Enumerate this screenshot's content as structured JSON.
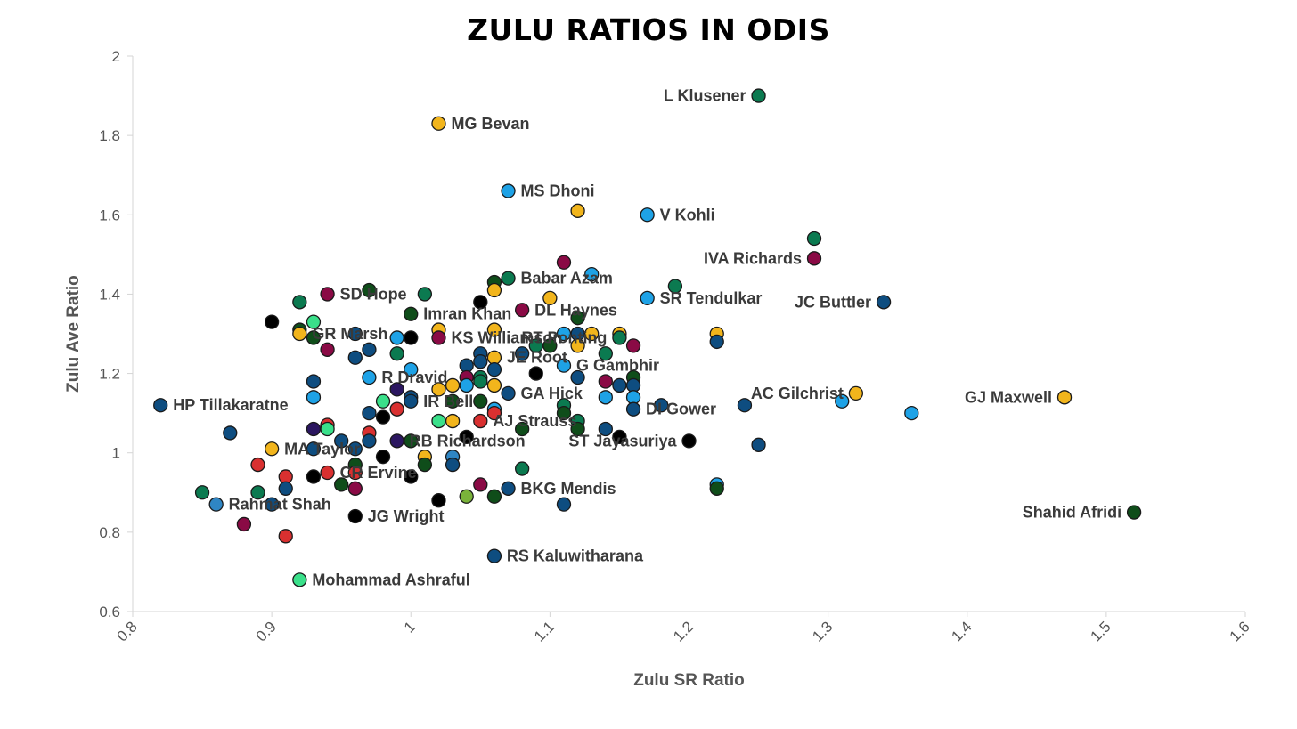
{
  "chart_data": {
    "type": "scatter",
    "title": "Zulu Ratios in ODIs",
    "xlabel": "Zulu SR Ratio",
    "ylabel": "Zulu Ave Ratio",
    "xlim": [
      0.8,
      1.6
    ],
    "ylim": [
      0.6,
      2.0
    ],
    "xticks": [
      "0.8",
      "0.9",
      "1",
      "1.1",
      "1.2",
      "1.3",
      "1.4",
      "1.5",
      "1.6"
    ],
    "yticks": [
      "0.6",
      "0.8",
      "1",
      "1.2",
      "1.4",
      "1.6",
      "1.8",
      "2"
    ],
    "grid": false,
    "legend": "none",
    "colors": {
      "gold": "#f2b51c",
      "green": "#0b7a50",
      "darkgreen": "#0f4d1a",
      "lightblue": "#1ea2e6",
      "navy": "#0e4d80",
      "black": "#000000",
      "red": "#d93030",
      "maroon": "#8a0a45",
      "mint": "#3ae08a",
      "olive": "#7ab33a",
      "purple": "#2b1660",
      "steel": "#2f86c4"
    },
    "points": [
      {
        "x": 1.25,
        "y": 1.9,
        "color": "green",
        "label": "L Klusener",
        "anchor": "left"
      },
      {
        "x": 1.02,
        "y": 1.83,
        "color": "gold",
        "label": "MG Bevan",
        "anchor": "right"
      },
      {
        "x": 1.07,
        "y": 1.66,
        "color": "lightblue",
        "label": "MS Dhoni",
        "anchor": "right"
      },
      {
        "x": 1.12,
        "y": 1.61,
        "color": "gold"
      },
      {
        "x": 1.17,
        "y": 1.6,
        "color": "lightblue",
        "label": "V Kohli",
        "anchor": "right"
      },
      {
        "x": 1.29,
        "y": 1.54,
        "color": "green"
      },
      {
        "x": 1.29,
        "y": 1.49,
        "color": "maroon",
        "label": "IVA Richards",
        "anchor": "left"
      },
      {
        "x": 1.11,
        "y": 1.48,
        "color": "maroon"
      },
      {
        "x": 1.13,
        "y": 1.45,
        "color": "lightblue"
      },
      {
        "x": 1.06,
        "y": 1.43,
        "color": "darkgreen"
      },
      {
        "x": 1.07,
        "y": 1.44,
        "color": "green",
        "label": "Babar Azam",
        "anchor": "right"
      },
      {
        "x": 1.19,
        "y": 1.42,
        "color": "green"
      },
      {
        "x": 1.06,
        "y": 1.41,
        "color": "gold"
      },
      {
        "x": 0.97,
        "y": 1.41,
        "color": "darkgreen"
      },
      {
        "x": 0.94,
        "y": 1.4,
        "color": "maroon",
        "label": "SD Hope",
        "anchor": "right"
      },
      {
        "x": 1.01,
        "y": 1.4,
        "color": "green"
      },
      {
        "x": 1.17,
        "y": 1.39,
        "color": "lightblue",
        "label": "SR Tendulkar",
        "anchor": "right"
      },
      {
        "x": 1.1,
        "y": 1.39,
        "color": "gold"
      },
      {
        "x": 1.34,
        "y": 1.38,
        "color": "navy",
        "label": "JC Buttler",
        "anchor": "left"
      },
      {
        "x": 0.92,
        "y": 1.38,
        "color": "green"
      },
      {
        "x": 1.05,
        "y": 1.38,
        "color": "black"
      },
      {
        "x": 1.08,
        "y": 1.36,
        "color": "maroon",
        "label": "DL Haynes",
        "anchor": "right"
      },
      {
        "x": 1.0,
        "y": 1.35,
        "color": "darkgreen",
        "label": "Imran Khan",
        "anchor": "right"
      },
      {
        "x": 1.12,
        "y": 1.34,
        "color": "darkgreen"
      },
      {
        "x": 0.9,
        "y": 1.33,
        "color": "black"
      },
      {
        "x": 0.93,
        "y": 1.33,
        "color": "mint"
      },
      {
        "x": 0.92,
        "y": 1.31,
        "color": "darkgreen"
      },
      {
        "x": 1.02,
        "y": 1.31,
        "color": "gold"
      },
      {
        "x": 1.06,
        "y": 1.31,
        "color": "gold"
      },
      {
        "x": 0.92,
        "y": 1.3,
        "color": "gold",
        "label": "GR Marsh",
        "anchor": "right"
      },
      {
        "x": 0.96,
        "y": 1.3,
        "color": "navy"
      },
      {
        "x": 1.11,
        "y": 1.3,
        "color": "lightblue"
      },
      {
        "x": 1.12,
        "y": 1.3,
        "color": "navy"
      },
      {
        "x": 1.13,
        "y": 1.3,
        "color": "gold"
      },
      {
        "x": 1.15,
        "y": 1.3,
        "color": "gold"
      },
      {
        "x": 1.22,
        "y": 1.3,
        "color": "gold"
      },
      {
        "x": 0.93,
        "y": 1.29,
        "color": "darkgreen"
      },
      {
        "x": 0.99,
        "y": 1.29,
        "color": "lightblue"
      },
      {
        "x": 1.0,
        "y": 1.29,
        "color": "black"
      },
      {
        "x": 1.02,
        "y": 1.29,
        "color": "maroon",
        "label": "KS Williamson",
        "anchor": "right"
      },
      {
        "x": 1.15,
        "y": 1.29,
        "color": "green",
        "label": "RT Ponting",
        "anchor": "left-over"
      },
      {
        "x": 1.22,
        "y": 1.28,
        "color": "navy"
      },
      {
        "x": 1.09,
        "y": 1.27,
        "color": "green"
      },
      {
        "x": 1.1,
        "y": 1.27,
        "color": "darkgreen"
      },
      {
        "x": 1.12,
        "y": 1.27,
        "color": "gold"
      },
      {
        "x": 1.16,
        "y": 1.27,
        "color": "maroon"
      },
      {
        "x": 0.94,
        "y": 1.26,
        "color": "maroon"
      },
      {
        "x": 0.97,
        "y": 1.26,
        "color": "navy"
      },
      {
        "x": 0.99,
        "y": 1.25,
        "color": "green"
      },
      {
        "x": 1.05,
        "y": 1.25,
        "color": "navy"
      },
      {
        "x": 1.08,
        "y": 1.25,
        "color": "navy"
      },
      {
        "x": 1.14,
        "y": 1.25,
        "color": "green"
      },
      {
        "x": 0.96,
        "y": 1.24,
        "color": "navy"
      },
      {
        "x": 1.06,
        "y": 1.24,
        "color": "gold",
        "label": "JE Root",
        "anchor": "right-over"
      },
      {
        "x": 1.05,
        "y": 1.23,
        "color": "navy"
      },
      {
        "x": 1.11,
        "y": 1.22,
        "color": "lightblue",
        "label": "G Gambhir",
        "anchor": "right-over"
      },
      {
        "x": 1.04,
        "y": 1.22,
        "color": "navy"
      },
      {
        "x": 1.06,
        "y": 1.21,
        "color": "navy"
      },
      {
        "x": 1.0,
        "y": 1.21,
        "color": "lightblue"
      },
      {
        "x": 1.09,
        "y": 1.2,
        "color": "black"
      },
      {
        "x": 0.97,
        "y": 1.19,
        "color": "lightblue",
        "label": "R Dravid",
        "anchor": "right"
      },
      {
        "x": 1.04,
        "y": 1.19,
        "color": "maroon"
      },
      {
        "x": 1.05,
        "y": 1.19,
        "color": "green"
      },
      {
        "x": 1.12,
        "y": 1.19,
        "color": "navy"
      },
      {
        "x": 1.16,
        "y": 1.19,
        "color": "darkgreen"
      },
      {
        "x": 0.93,
        "y": 1.18,
        "color": "navy"
      },
      {
        "x": 1.05,
        "y": 1.18,
        "color": "green"
      },
      {
        "x": 1.14,
        "y": 1.18,
        "color": "maroon"
      },
      {
        "x": 1.02,
        "y": 1.16,
        "color": "gold"
      },
      {
        "x": 1.03,
        "y": 1.17,
        "color": "gold"
      },
      {
        "x": 1.04,
        "y": 1.17,
        "color": "lightblue"
      },
      {
        "x": 1.06,
        "y": 1.17,
        "color": "gold"
      },
      {
        "x": 1.15,
        "y": 1.17,
        "color": "navy"
      },
      {
        "x": 1.16,
        "y": 1.17,
        "color": "navy"
      },
      {
        "x": 0.99,
        "y": 1.16,
        "color": "purple"
      },
      {
        "x": 1.07,
        "y": 1.15,
        "color": "navy",
        "label": "GA Hick",
        "anchor": "right"
      },
      {
        "x": 1.32,
        "y": 1.15,
        "color": "gold",
        "label": "AC Gilchrist",
        "anchor": "left"
      },
      {
        "x": 0.93,
        "y": 1.14,
        "color": "lightblue"
      },
      {
        "x": 1.0,
        "y": 1.14,
        "color": "navy"
      },
      {
        "x": 1.14,
        "y": 1.14,
        "color": "lightblue"
      },
      {
        "x": 1.16,
        "y": 1.14,
        "color": "lightblue"
      },
      {
        "x": 1.47,
        "y": 1.14,
        "color": "gold",
        "label": "GJ Maxwell",
        "anchor": "left"
      },
      {
        "x": 1.31,
        "y": 1.13,
        "color": "lightblue"
      },
      {
        "x": 0.98,
        "y": 1.13,
        "color": "mint"
      },
      {
        "x": 1.0,
        "y": 1.13,
        "color": "navy",
        "label": "IR Bell",
        "anchor": "right"
      },
      {
        "x": 1.03,
        "y": 1.13,
        "color": "darkgreen"
      },
      {
        "x": 1.05,
        "y": 1.13,
        "color": "darkgreen"
      },
      {
        "x": 0.82,
        "y": 1.12,
        "color": "navy",
        "label": "HP Tillakaratne",
        "anchor": "right"
      },
      {
        "x": 1.11,
        "y": 1.12,
        "color": "green"
      },
      {
        "x": 1.18,
        "y": 1.12,
        "color": "navy"
      },
      {
        "x": 1.24,
        "y": 1.12,
        "color": "navy"
      },
      {
        "x": 0.99,
        "y": 1.11,
        "color": "red"
      },
      {
        "x": 1.06,
        "y": 1.11,
        "color": "lightblue"
      },
      {
        "x": 1.16,
        "y": 1.11,
        "color": "navy",
        "label": "DI Gower",
        "anchor": "right-over"
      },
      {
        "x": 0.97,
        "y": 1.1,
        "color": "navy"
      },
      {
        "x": 1.06,
        "y": 1.1,
        "color": "red"
      },
      {
        "x": 1.11,
        "y": 1.1,
        "color": "darkgreen"
      },
      {
        "x": 1.36,
        "y": 1.1,
        "color": "lightblue"
      },
      {
        "x": 0.98,
        "y": 1.09,
        "color": "black"
      },
      {
        "x": 1.02,
        "y": 1.08,
        "color": "mint"
      },
      {
        "x": 1.03,
        "y": 1.08,
        "color": "gold"
      },
      {
        "x": 1.05,
        "y": 1.08,
        "color": "red",
        "label": "AJ Strauss",
        "anchor": "right"
      },
      {
        "x": 1.12,
        "y": 1.08,
        "color": "green"
      },
      {
        "x": 0.94,
        "y": 1.07,
        "color": "red"
      },
      {
        "x": 0.93,
        "y": 1.06,
        "color": "purple"
      },
      {
        "x": 0.94,
        "y": 1.06,
        "color": "mint"
      },
      {
        "x": 1.08,
        "y": 1.06,
        "color": "darkgreen"
      },
      {
        "x": 1.12,
        "y": 1.06,
        "color": "darkgreen"
      },
      {
        "x": 1.14,
        "y": 1.06,
        "color": "navy"
      },
      {
        "x": 0.87,
        "y": 1.05,
        "color": "navy"
      },
      {
        "x": 0.97,
        "y": 1.05,
        "color": "red"
      },
      {
        "x": 1.04,
        "y": 1.04,
        "color": "black"
      },
      {
        "x": 1.15,
        "y": 1.04,
        "color": "black"
      },
      {
        "x": 0.95,
        "y": 1.03,
        "color": "navy"
      },
      {
        "x": 0.97,
        "y": 1.03,
        "color": "navy"
      },
      {
        "x": 0.99,
        "y": 1.03,
        "color": "purple",
        "label": "RB Richardson",
        "anchor": "right-over"
      },
      {
        "x": 1.0,
        "y": 1.03,
        "color": "darkgreen"
      },
      {
        "x": 1.2,
        "y": 1.03,
        "color": "black",
        "label": "ST Jayasuriya",
        "anchor": "left-over"
      },
      {
        "x": 0.9,
        "y": 1.01,
        "color": "gold",
        "label": "MA Taylor",
        "anchor": "right"
      },
      {
        "x": 0.93,
        "y": 1.01,
        "color": "navy"
      },
      {
        "x": 0.96,
        "y": 1.01,
        "color": "navy"
      },
      {
        "x": 1.25,
        "y": 1.02,
        "color": "navy"
      },
      {
        "x": 0.98,
        "y": 0.99,
        "color": "black"
      },
      {
        "x": 1.01,
        "y": 0.99,
        "color": "gold"
      },
      {
        "x": 1.03,
        "y": 0.99,
        "color": "steel"
      },
      {
        "x": 0.89,
        "y": 0.97,
        "color": "red"
      },
      {
        "x": 0.96,
        "y": 0.97,
        "color": "darkgreen"
      },
      {
        "x": 1.01,
        "y": 0.97,
        "color": "darkgreen"
      },
      {
        "x": 1.03,
        "y": 0.97,
        "color": "navy"
      },
      {
        "x": 1.08,
        "y": 0.96,
        "color": "green"
      },
      {
        "x": 0.94,
        "y": 0.95,
        "color": "red",
        "label": "CR Ervine",
        "anchor": "right-over"
      },
      {
        "x": 0.96,
        "y": 0.95,
        "color": "red"
      },
      {
        "x": 0.91,
        "y": 0.94,
        "color": "red"
      },
      {
        "x": 0.93,
        "y": 0.94,
        "color": "black"
      },
      {
        "x": 1.0,
        "y": 0.94,
        "color": "black"
      },
      {
        "x": 0.95,
        "y": 0.92,
        "color": "darkgreen"
      },
      {
        "x": 1.05,
        "y": 0.92,
        "color": "maroon"
      },
      {
        "x": 1.22,
        "y": 0.92,
        "color": "lightblue"
      },
      {
        "x": 0.91,
        "y": 0.91,
        "color": "navy"
      },
      {
        "x": 0.96,
        "y": 0.91,
        "color": "maroon"
      },
      {
        "x": 1.07,
        "y": 0.91,
        "color": "navy",
        "label": "BKG Mendis",
        "anchor": "right"
      },
      {
        "x": 1.22,
        "y": 0.91,
        "color": "darkgreen"
      },
      {
        "x": 0.85,
        "y": 0.9,
        "color": "green"
      },
      {
        "x": 0.89,
        "y": 0.9,
        "color": "green"
      },
      {
        "x": 1.04,
        "y": 0.89,
        "color": "olive"
      },
      {
        "x": 1.06,
        "y": 0.89,
        "color": "darkgreen"
      },
      {
        "x": 1.02,
        "y": 0.88,
        "color": "black"
      },
      {
        "x": 0.86,
        "y": 0.87,
        "color": "steel",
        "label": "Rahmat Shah",
        "anchor": "right"
      },
      {
        "x": 0.9,
        "y": 0.87,
        "color": "navy"
      },
      {
        "x": 1.11,
        "y": 0.87,
        "color": "navy"
      },
      {
        "x": 1.52,
        "y": 0.85,
        "color": "darkgreen",
        "label": "Shahid Afridi",
        "anchor": "left"
      },
      {
        "x": 0.96,
        "y": 0.84,
        "color": "black",
        "label": "JG Wright",
        "anchor": "right"
      },
      {
        "x": 0.88,
        "y": 0.82,
        "color": "maroon"
      },
      {
        "x": 0.91,
        "y": 0.79,
        "color": "red"
      },
      {
        "x": 1.06,
        "y": 0.74,
        "color": "navy",
        "label": "RS Kaluwitharana",
        "anchor": "right"
      },
      {
        "x": 0.92,
        "y": 0.68,
        "color": "mint",
        "label": "Mohammad Ashraful",
        "anchor": "right"
      }
    ]
  }
}
